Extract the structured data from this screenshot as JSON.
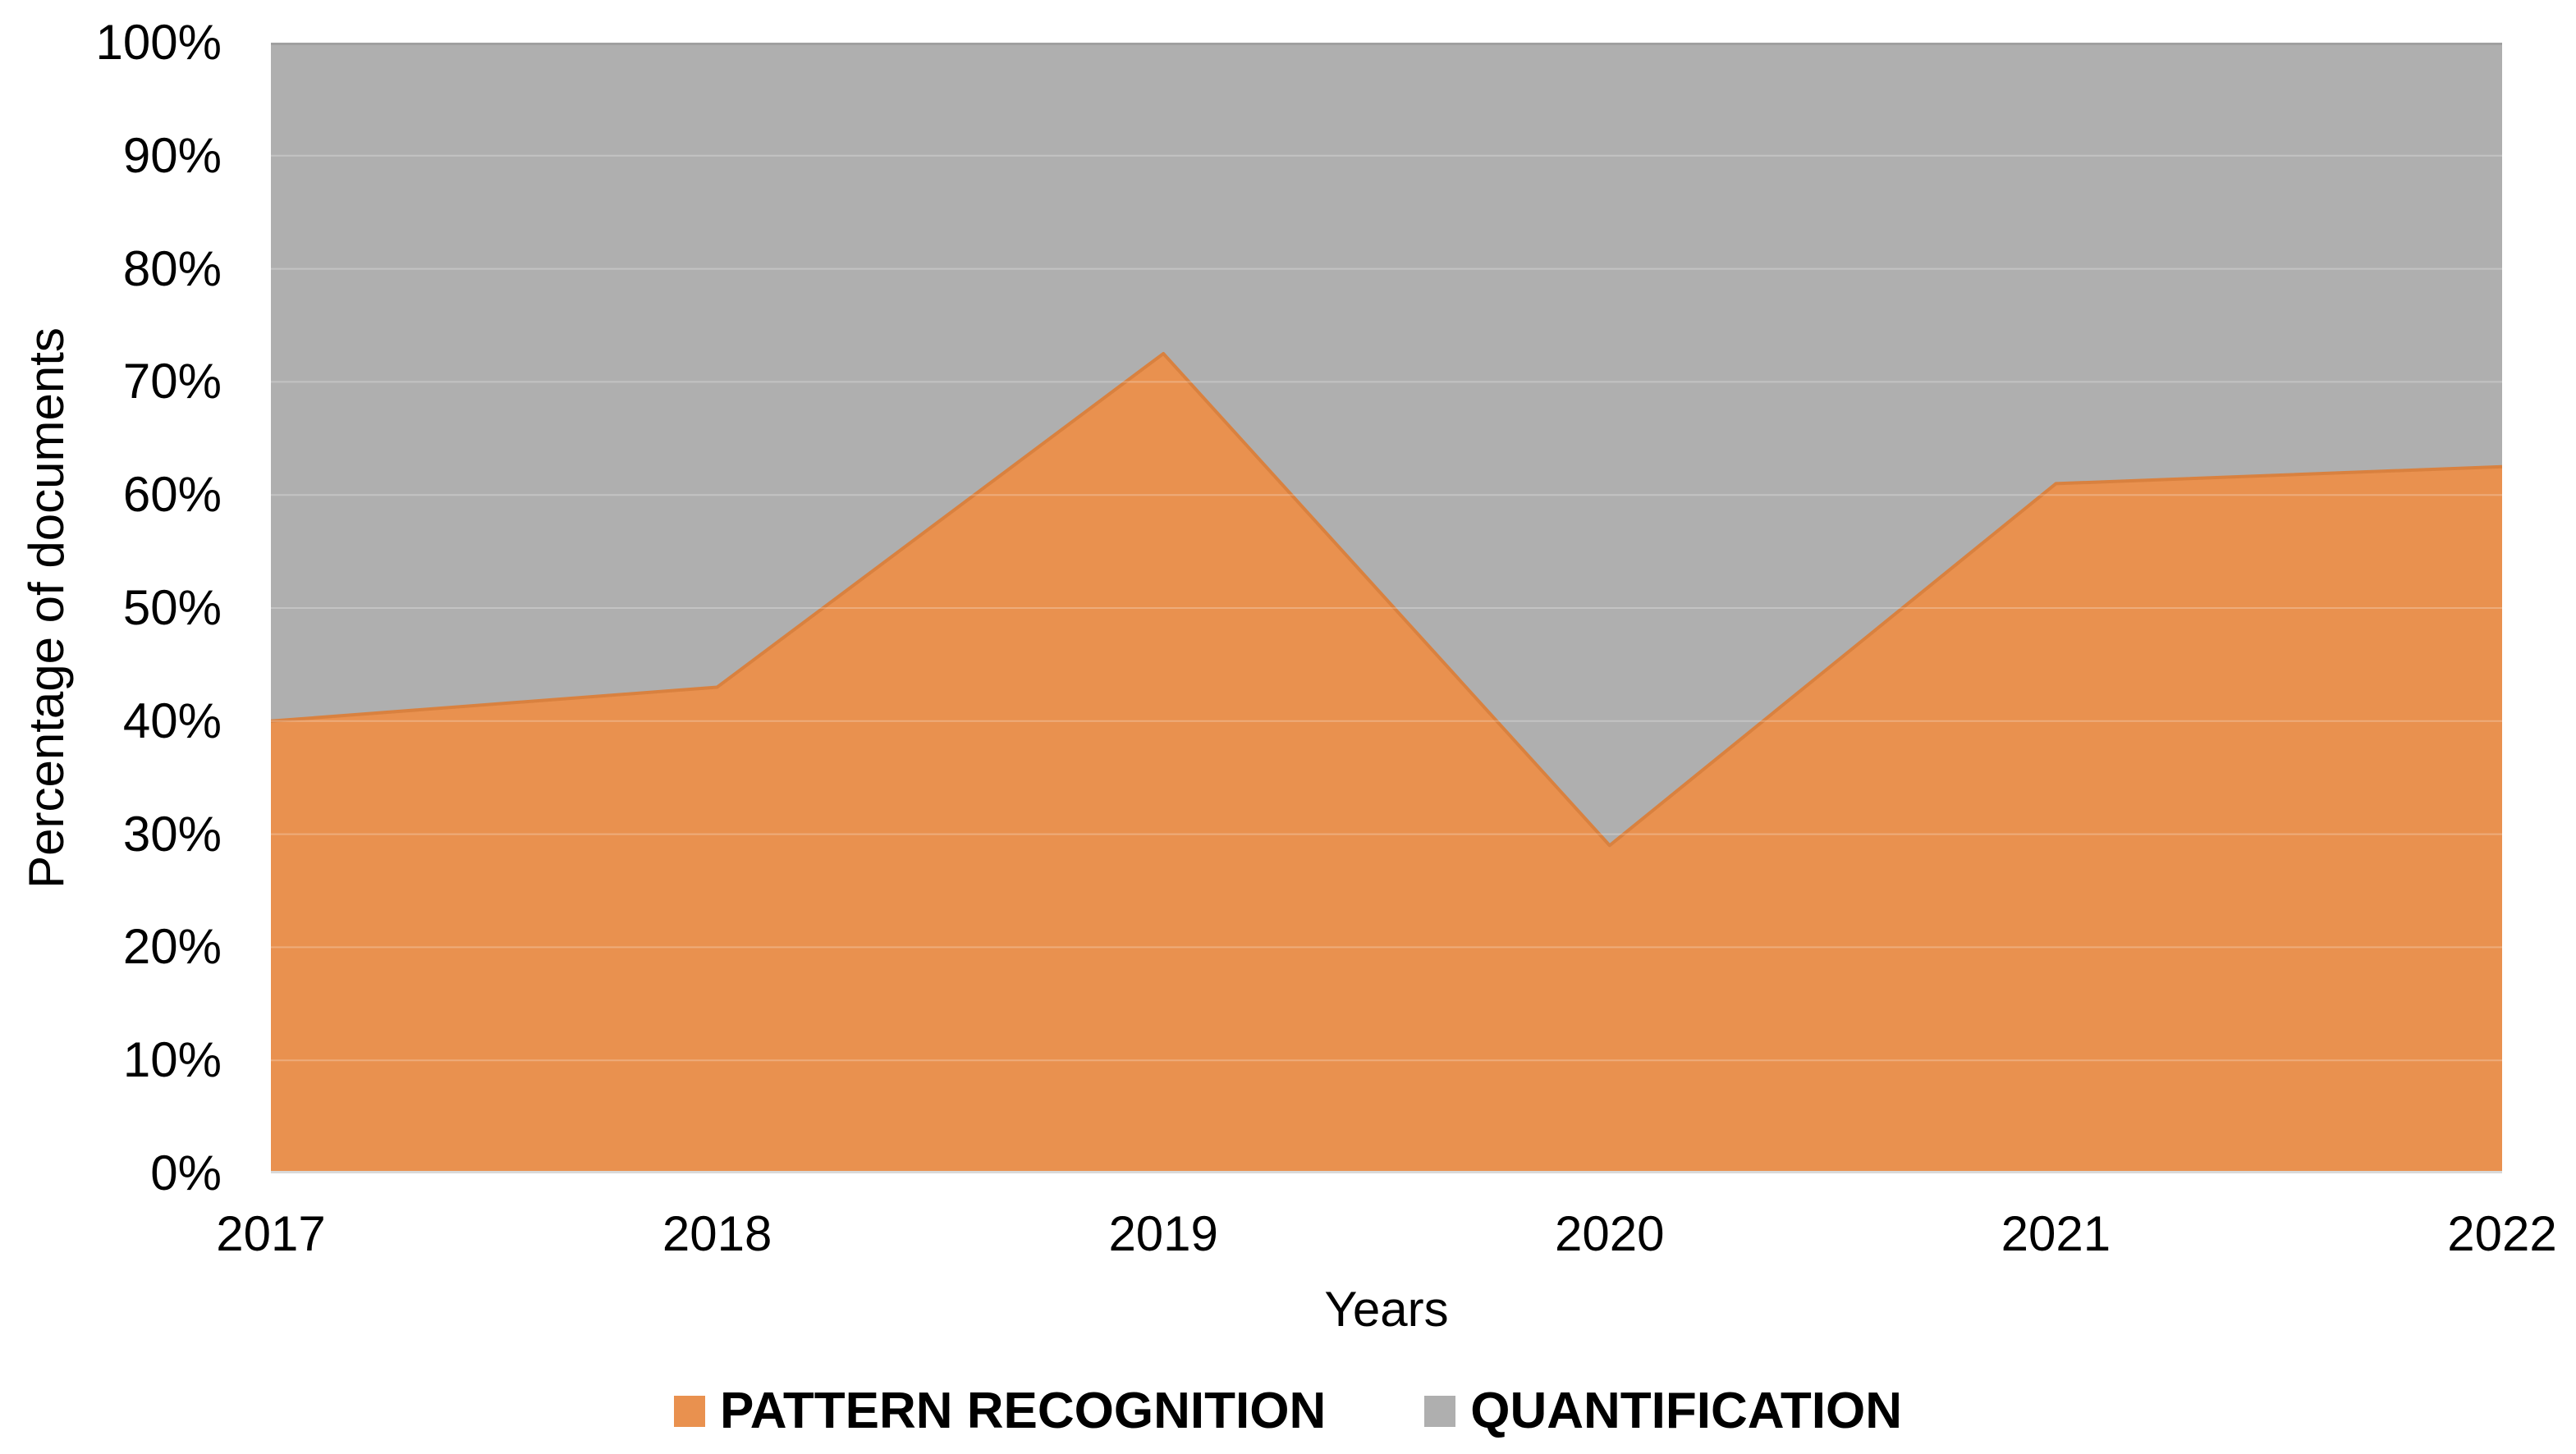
{
  "chart_data": {
    "type": "area",
    "stacking": "percent",
    "title": "",
    "xlabel": "Years",
    "ylabel": "Percentage of documents",
    "categories": [
      "2017",
      "2018",
      "2019",
      "2020",
      "2021",
      "2022"
    ],
    "series": [
      {
        "name": "PATTERN RECOGNITION",
        "color": "#E9914F",
        "edge_color": "#D9813F",
        "values": [
          40,
          43,
          72.5,
          29,
          61,
          62.5
        ]
      },
      {
        "name": "QUANTIFICATION",
        "color": "#AFAFAF",
        "edge_color": "#9F9F9F",
        "values": [
          60,
          57,
          27.5,
          71,
          39,
          37.5
        ]
      }
    ],
    "ylim": [
      0,
      100
    ],
    "y_ticks": [
      "0%",
      "10%",
      "20%",
      "30%",
      "40%",
      "50%",
      "60%",
      "70%",
      "80%",
      "90%",
      "100%"
    ],
    "grid": true,
    "gridline_overlay_color": "rgba(255,255,255,0.25)",
    "axis_line_color": "#D9D9D9",
    "text_color": "#000000",
    "legend_position": "bottom"
  }
}
